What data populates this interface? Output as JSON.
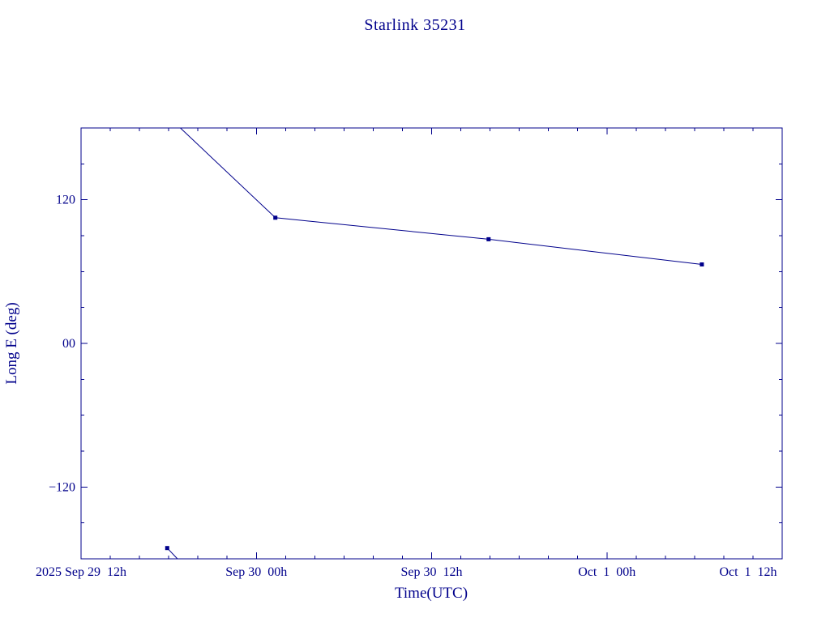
{
  "page": {
    "background": "#ffffff",
    "accent": "#00008B"
  },
  "chart_data": {
    "type": "line",
    "title": "Starlink 35231",
    "xlabel": "Time(UTC)",
    "ylabel": "Long E (deg)",
    "x_unit": "hours since 2025 Sep 29 00h UTC",
    "xlim": [
      12,
      60
    ],
    "ylim": [
      -180,
      180
    ],
    "grid": false,
    "line_color": "#00008B",
    "marker": "square",
    "x_ticks": [
      {
        "value": 12,
        "label": "2025 Sep 29  12h"
      },
      {
        "value": 24,
        "label": "Sep 30  00h"
      },
      {
        "value": 36,
        "label": "Sep 30  12h"
      },
      {
        "value": 48,
        "label": "Oct  1  00h"
      },
      {
        "value": 60,
        "label": "Oct  1  12h"
      }
    ],
    "x_minor_step": 2,
    "y_ticks": [
      {
        "value": 120,
        "label": "120"
      },
      {
        "value": 0,
        "label": "00"
      },
      {
        "value": -120,
        "label": "−120"
      }
    ],
    "y_minor_step": 30,
    "points": [
      {
        "t": 17.9,
        "lon": -171
      },
      {
        "t": 25.3,
        "lon": 105
      },
      {
        "t": 39.9,
        "lon": 87
      },
      {
        "t": 54.5,
        "lon": 66
      }
    ],
    "wrap_segments": [
      [
        [
          17.9,
          -171
        ],
        [
          18.6,
          -180
        ]
      ],
      [
        [
          18.8,
          180
        ],
        [
          25.3,
          105
        ],
        [
          39.9,
          87
        ],
        [
          54.5,
          66
        ]
      ]
    ]
  }
}
